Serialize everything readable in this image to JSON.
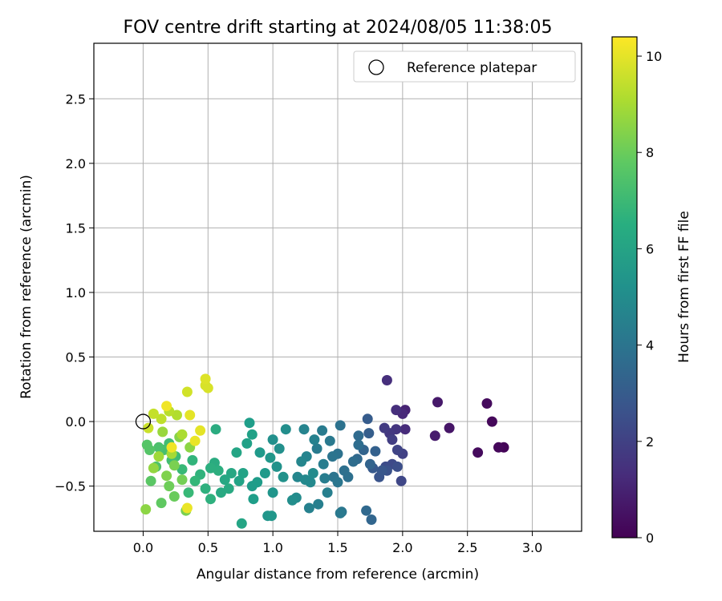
{
  "chart_data": {
    "type": "scatter",
    "title": "FOV centre drift starting at 2024/08/05 11:38:05",
    "xlabel": "Angular distance from reference (arcmin)",
    "ylabel": "Rotation from reference (arcmin)",
    "xlim": [
      -0.38,
      3.38
    ],
    "ylim": [
      -0.85,
      2.93
    ],
    "x_ticks": [
      0.0,
      0.5,
      1.0,
      1.5,
      2.0,
      2.5,
      3.0
    ],
    "x_tick_labels": [
      "0.0",
      "0.5",
      "1.0",
      "1.5",
      "2.0",
      "2.5",
      "3.0"
    ],
    "y_ticks": [
      -0.5,
      0.0,
      0.5,
      1.0,
      1.5,
      2.0,
      2.5
    ],
    "y_tick_labels": [
      "−0.5",
      "0.0",
      "0.5",
      "1.0",
      "1.5",
      "2.0",
      "2.5"
    ],
    "grid": true,
    "legend": {
      "placement": "top-right",
      "entries": [
        "Reference platepar"
      ]
    },
    "reference_point": {
      "x": 0.0,
      "y": 0.0
    },
    "colorbar": {
      "label": "Hours from first FF file",
      "colormap": "viridis",
      "range": [
        0,
        10.4
      ],
      "ticks": [
        0,
        2,
        4,
        6,
        8,
        10
      ],
      "tick_labels": [
        "0",
        "2",
        "4",
        "6",
        "8",
        "10"
      ]
    },
    "points": [
      [
        2.78,
        -0.2,
        0.1
      ],
      [
        2.74,
        -0.2,
        0.2
      ],
      [
        2.69,
        0.0,
        0.2
      ],
      [
        2.65,
        0.14,
        0.3
      ],
      [
        2.58,
        -0.24,
        0.3
      ],
      [
        2.36,
        -0.05,
        0.6
      ],
      [
        2.27,
        0.15,
        0.7
      ],
      [
        2.25,
        -0.11,
        0.8
      ],
      [
        2.02,
        0.09,
        1.0
      ],
      [
        2.0,
        0.06,
        1.2
      ],
      [
        2.02,
        -0.06,
        1.3
      ],
      [
        1.95,
        0.09,
        1.4
      ],
      [
        1.88,
        0.32,
        1.4
      ],
      [
        1.95,
        -0.06,
        1.6
      ],
      [
        1.9,
        -0.09,
        1.7
      ],
      [
        1.86,
        -0.05,
        1.8
      ],
      [
        1.92,
        -0.14,
        1.9
      ],
      [
        2.0,
        -0.25,
        2.0
      ],
      [
        1.96,
        -0.22,
        2.1
      ],
      [
        1.99,
        -0.46,
        2.2
      ],
      [
        1.92,
        -0.33,
        2.3
      ],
      [
        1.87,
        -0.35,
        2.4
      ],
      [
        1.96,
        -0.35,
        2.5
      ],
      [
        1.88,
        -0.38,
        2.6
      ],
      [
        1.82,
        -0.43,
        2.7
      ],
      [
        1.84,
        -0.38,
        2.8
      ],
      [
        1.77,
        -0.36,
        2.9
      ],
      [
        1.73,
        0.02,
        3.0
      ],
      [
        1.74,
        -0.09,
        3.1
      ],
      [
        1.79,
        -0.23,
        3.2
      ],
      [
        1.7,
        -0.22,
        3.3
      ],
      [
        1.75,
        -0.33,
        3.3
      ],
      [
        1.76,
        -0.76,
        3.4
      ],
      [
        1.72,
        -0.69,
        3.5
      ],
      [
        1.65,
        -0.29,
        3.5
      ],
      [
        1.66,
        -0.11,
        3.6
      ],
      [
        1.66,
        -0.18,
        3.7
      ],
      [
        1.62,
        -0.31,
        3.7
      ],
      [
        1.58,
        -0.43,
        3.8
      ],
      [
        1.55,
        -0.38,
        3.8
      ],
      [
        1.52,
        -0.03,
        3.9
      ],
      [
        1.5,
        -0.25,
        3.9
      ],
      [
        1.46,
        -0.27,
        4.0
      ],
      [
        1.47,
        -0.43,
        4.0
      ],
      [
        1.5,
        -0.47,
        4.1
      ],
      [
        1.53,
        -0.7,
        4.1
      ],
      [
        1.52,
        -0.71,
        4.2
      ],
      [
        1.44,
        -0.15,
        4.2
      ],
      [
        1.38,
        -0.07,
        4.3
      ],
      [
        1.34,
        -0.21,
        4.3
      ],
      [
        1.39,
        -0.33,
        4.4
      ],
      [
        1.4,
        -0.44,
        4.4
      ],
      [
        1.42,
        -0.55,
        4.5
      ],
      [
        1.35,
        -0.64,
        4.5
      ],
      [
        1.28,
        -0.67,
        4.6
      ],
      [
        1.32,
        -0.14,
        4.6
      ],
      [
        1.24,
        -0.06,
        4.7
      ],
      [
        1.26,
        -0.27,
        4.7
      ],
      [
        1.22,
        -0.31,
        4.8
      ],
      [
        1.19,
        -0.43,
        4.8
      ],
      [
        1.25,
        -0.45,
        4.9
      ],
      [
        1.29,
        -0.47,
        4.9
      ],
      [
        1.31,
        -0.4,
        5.0
      ],
      [
        1.18,
        -0.59,
        5.0
      ],
      [
        1.15,
        -0.61,
        5.1
      ],
      [
        1.1,
        -0.06,
        5.1
      ],
      [
        1.05,
        -0.21,
        5.2
      ],
      [
        1.0,
        -0.14,
        5.2
      ],
      [
        1.08,
        -0.43,
        5.3
      ],
      [
        1.03,
        -0.35,
        5.3
      ],
      [
        1.0,
        -0.55,
        5.4
      ],
      [
        0.96,
        -0.73,
        5.4
      ],
      [
        0.99,
        -0.73,
        5.5
      ],
      [
        0.98,
        -0.28,
        5.5
      ],
      [
        0.9,
        -0.24,
        5.6
      ],
      [
        0.94,
        -0.4,
        5.6
      ],
      [
        0.88,
        -0.47,
        5.7
      ],
      [
        0.84,
        -0.5,
        5.7
      ],
      [
        0.85,
        -0.6,
        5.8
      ],
      [
        0.82,
        -0.01,
        5.8
      ],
      [
        0.84,
        -0.1,
        5.9
      ],
      [
        0.8,
        -0.17,
        5.9
      ],
      [
        0.77,
        -0.4,
        6.0
      ],
      [
        0.74,
        -0.46,
        6.0
      ],
      [
        0.76,
        -0.79,
        6.1
      ],
      [
        0.72,
        -0.24,
        6.1
      ],
      [
        0.68,
        -0.4,
        6.2
      ],
      [
        0.63,
        -0.45,
        6.2
      ],
      [
        0.66,
        -0.52,
        6.3
      ],
      [
        0.6,
        -0.55,
        6.3
      ],
      [
        0.56,
        -0.06,
        6.4
      ],
      [
        0.55,
        -0.32,
        6.4
      ],
      [
        0.52,
        -0.36,
        6.5
      ],
      [
        0.58,
        -0.38,
        6.5
      ],
      [
        0.48,
        -0.52,
        6.6
      ],
      [
        0.52,
        -0.6,
        6.6
      ],
      [
        0.44,
        -0.41,
        6.7
      ],
      [
        0.38,
        -0.3,
        6.8
      ],
      [
        0.4,
        -0.46,
        6.9
      ],
      [
        0.35,
        -0.55,
        7.0
      ],
      [
        0.3,
        -0.37,
        7.0
      ],
      [
        0.25,
        -0.27,
        7.1
      ],
      [
        0.22,
        -0.3,
        7.2
      ],
      [
        0.2,
        -0.17,
        7.2
      ],
      [
        0.16,
        -0.22,
        7.3
      ],
      [
        0.12,
        -0.2,
        7.4
      ],
      [
        0.1,
        -0.35,
        7.5
      ],
      [
        0.05,
        -0.22,
        7.6
      ],
      [
        0.03,
        -0.18,
        7.6
      ],
      [
        0.06,
        -0.46,
        7.7
      ],
      [
        0.14,
        -0.63,
        7.8
      ],
      [
        0.24,
        -0.58,
        8.0
      ],
      [
        0.2,
        -0.5,
        8.1
      ],
      [
        0.3,
        -0.45,
        8.2
      ],
      [
        0.33,
        -0.69,
        8.3
      ],
      [
        0.24,
        -0.34,
        8.3
      ],
      [
        0.18,
        -0.42,
        8.4
      ],
      [
        0.28,
        -0.12,
        8.5
      ],
      [
        0.36,
        -0.2,
        8.6
      ],
      [
        0.02,
        -0.68,
        8.6
      ],
      [
        0.08,
        -0.36,
        8.7
      ],
      [
        0.15,
        -0.08,
        8.8
      ],
      [
        0.12,
        -0.27,
        8.9
      ],
      [
        0.22,
        -0.25,
        9.0
      ],
      [
        0.3,
        -0.1,
        9.1
      ],
      [
        0.26,
        0.05,
        9.2
      ],
      [
        0.2,
        0.08,
        9.3
      ],
      [
        0.14,
        0.02,
        9.4
      ],
      [
        0.08,
        0.06,
        9.5
      ],
      [
        0.04,
        -0.05,
        9.6
      ],
      [
        0.34,
        0.23,
        9.7
      ],
      [
        0.48,
        0.28,
        9.8
      ],
      [
        0.5,
        0.26,
        9.8
      ],
      [
        0.48,
        0.33,
        9.9
      ],
      [
        0.36,
        0.05,
        10.0
      ],
      [
        0.44,
        -0.07,
        10.0
      ],
      [
        0.4,
        -0.15,
        10.1
      ],
      [
        0.34,
        -0.67,
        10.1
      ],
      [
        0.22,
        -0.2,
        10.2
      ],
      [
        0.18,
        0.12,
        10.2
      ]
    ]
  }
}
